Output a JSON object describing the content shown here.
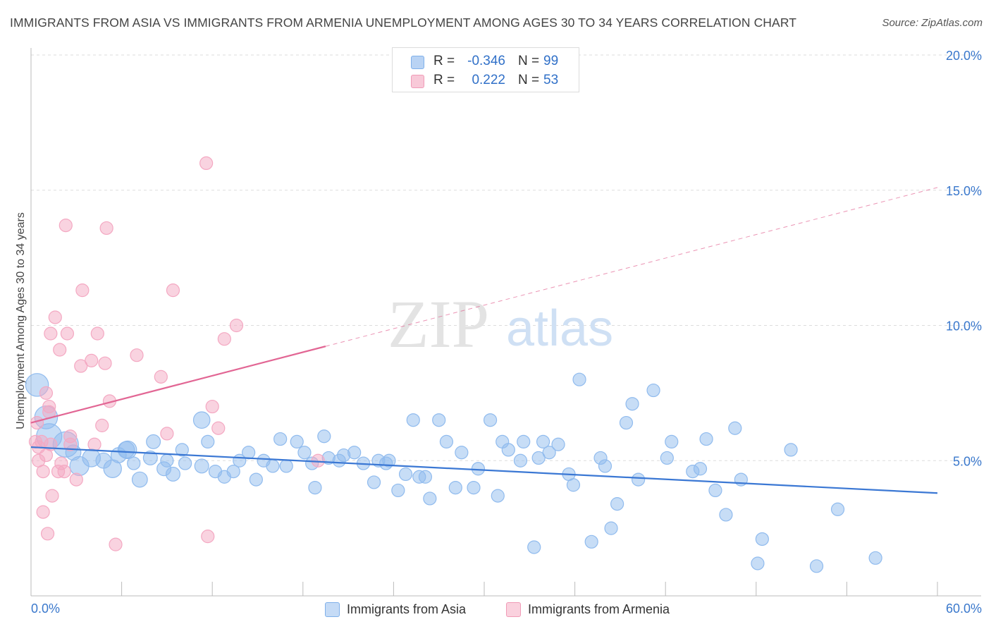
{
  "title": "IMMIGRANTS FROM ASIA VS IMMIGRANTS FROM ARMENIA UNEMPLOYMENT AMONG AGES 30 TO 34 YEARS CORRELATION CHART",
  "source": "Source: ZipAtlas.com",
  "watermark": {
    "zip": "ZIP",
    "atlas": "atlas"
  },
  "stats": [
    {
      "r_label": "R =",
      "r_value": "-0.346",
      "n_label": "N =",
      "n_value": "99",
      "color": "#7fb0ea",
      "fill": "#b9d3f4"
    },
    {
      "r_label": "R =",
      "r_value": "0.222",
      "n_label": "N =",
      "n_value": "53",
      "color": "#f09bb7",
      "fill": "#f8c9d8"
    }
  ],
  "legend": [
    {
      "label": "Immigrants from Asia",
      "color": "#7fb0ea",
      "fill": "#c5dbf6"
    },
    {
      "label": "Immigrants from Armenia",
      "color": "#f09bb7",
      "fill": "#fad1de"
    }
  ],
  "chart_data": {
    "type": "scatter",
    "xlabel": "",
    "ylabel": "Unemployment Among Ages 30 to 34 years",
    "xlim": [
      0,
      60
    ],
    "ylim": [
      0,
      20
    ],
    "x_tick_labels": [
      "0.0%",
      "60.0%"
    ],
    "y_tick_labels": [
      "5.0%",
      "10.0%",
      "15.0%",
      "20.0%"
    ],
    "y_ticks": [
      5,
      10,
      15,
      20
    ],
    "grid": true,
    "series": [
      {
        "name": "Immigrants from Asia",
        "color": "#3b78d4",
        "point_color": "#90bbee",
        "trend": {
          "x": [
            0,
            60
          ],
          "y": [
            5.5,
            3.8
          ],
          "dashed_from": null
        },
        "points": [
          [
            0.4,
            7.8,
            1.8
          ],
          [
            1.0,
            6.6,
            1.8
          ],
          [
            1.2,
            5.9,
            2.0
          ],
          [
            2.3,
            5.6,
            2.0
          ],
          [
            2.8,
            5.3,
            1.2
          ],
          [
            3.2,
            4.8,
            1.5
          ],
          [
            4.0,
            5.1,
            1.4
          ],
          [
            4.8,
            5.0,
            1.2
          ],
          [
            5.4,
            4.7,
            1.4
          ],
          [
            5.8,
            5.2,
            1.2
          ],
          [
            6.3,
            5.4,
            1.3
          ],
          [
            6.4,
            5.4,
            1.4
          ],
          [
            7.2,
            4.3,
            1.2
          ],
          [
            6.8,
            4.9,
            1.0
          ],
          [
            7.9,
            5.1,
            1.1
          ],
          [
            8.1,
            5.7,
            1.1
          ],
          [
            8.8,
            4.7,
            1.1
          ],
          [
            9.0,
            5.0,
            1.0
          ],
          [
            9.4,
            4.5,
            1.1
          ],
          [
            10.0,
            5.4,
            1.0
          ],
          [
            10.2,
            4.9,
            1.0
          ],
          [
            11.3,
            6.5,
            1.3
          ],
          [
            11.3,
            4.8,
            1.1
          ],
          [
            11.7,
            5.7,
            1.0
          ],
          [
            12.2,
            4.6,
            1.0
          ],
          [
            12.8,
            4.4,
            1.0
          ],
          [
            13.4,
            4.6,
            1.0
          ],
          [
            13.8,
            5.0,
            1.0
          ],
          [
            14.4,
            5.3,
            1.0
          ],
          [
            14.9,
            4.3,
            1.0
          ],
          [
            15.4,
            5.0,
            1.0
          ],
          [
            16.0,
            4.8,
            1.0
          ],
          [
            16.5,
            5.8,
            1.0
          ],
          [
            16.9,
            4.8,
            1.0
          ],
          [
            17.6,
            5.7,
            1.0
          ],
          [
            18.1,
            5.3,
            1.0
          ],
          [
            18.6,
            4.9,
            1.0
          ],
          [
            18.8,
            4.0,
            1.0
          ],
          [
            19.4,
            5.9,
            1.0
          ],
          [
            19.7,
            5.1,
            1.0
          ],
          [
            20.4,
            5.0,
            1.0
          ],
          [
            20.7,
            5.2,
            1.0
          ],
          [
            21.4,
            5.3,
            1.0
          ],
          [
            22.0,
            4.9,
            1.0
          ],
          [
            22.7,
            4.2,
            1.0
          ],
          [
            23.0,
            5.0,
            1.0
          ],
          [
            23.5,
            4.9,
            1.0
          ],
          [
            23.7,
            5.0,
            1.0
          ],
          [
            24.3,
            3.9,
            1.0
          ],
          [
            24.8,
            4.5,
            1.0
          ],
          [
            25.3,
            6.5,
            1.0
          ],
          [
            25.7,
            4.4,
            1.0
          ],
          [
            26.1,
            4.4,
            1.0
          ],
          [
            26.4,
            3.6,
            1.0
          ],
          [
            27.0,
            6.5,
            1.0
          ],
          [
            27.5,
            5.7,
            1.0
          ],
          [
            28.1,
            4.0,
            1.0
          ],
          [
            28.5,
            5.3,
            1.0
          ],
          [
            29.3,
            4.0,
            1.0
          ],
          [
            29.6,
            4.7,
            1.0
          ],
          [
            30.4,
            6.5,
            1.0
          ],
          [
            30.9,
            3.7,
            1.0
          ],
          [
            31.2,
            5.7,
            1.0
          ],
          [
            31.6,
            5.4,
            1.0
          ],
          [
            32.4,
            5.0,
            1.0
          ],
          [
            32.6,
            5.7,
            1.0
          ],
          [
            33.6,
            5.1,
            1.0
          ],
          [
            33.9,
            5.7,
            1.0
          ],
          [
            34.3,
            5.3,
            1.0
          ],
          [
            34.9,
            5.6,
            1.0
          ],
          [
            35.6,
            4.5,
            1.0
          ],
          [
            35.9,
            4.1,
            1.0
          ],
          [
            36.3,
            8.0,
            1.0
          ],
          [
            37.7,
            5.1,
            1.0
          ],
          [
            38.0,
            4.8,
            1.0
          ],
          [
            38.8,
            3.4,
            1.0
          ],
          [
            39.4,
            6.4,
            1.0
          ],
          [
            39.8,
            7.1,
            1.0
          ],
          [
            40.2,
            4.3,
            1.0
          ],
          [
            41.2,
            7.6,
            1.0
          ],
          [
            42.1,
            5.1,
            1.0
          ],
          [
            42.4,
            5.7,
            1.0
          ],
          [
            43.8,
            4.6,
            1.0
          ],
          [
            44.3,
            4.7,
            1.0
          ],
          [
            44.7,
            5.8,
            1.0
          ],
          [
            45.3,
            3.9,
            1.0
          ],
          [
            46.0,
            3.0,
            1.0
          ],
          [
            46.6,
            6.2,
            1.0
          ],
          [
            47.0,
            4.3,
            1.0
          ],
          [
            48.1,
            1.2,
            1.0
          ],
          [
            48.4,
            2.1,
            1.0
          ],
          [
            50.3,
            5.4,
            1.0
          ],
          [
            52.0,
            1.1,
            1.0
          ],
          [
            53.4,
            3.2,
            1.0
          ],
          [
            55.9,
            1.4,
            1.0
          ],
          [
            33.3,
            1.8,
            1.0
          ],
          [
            37.1,
            2.0,
            1.0
          ],
          [
            38.4,
            2.5,
            1.0
          ]
        ]
      },
      {
        "name": "Immigrants from Armenia",
        "color": "#e26694",
        "point_color": "#f4a8c2",
        "trend": {
          "x": [
            0,
            60
          ],
          "y": [
            6.4,
            15.1
          ],
          "dashed_from": 19.5
        },
        "points": [
          [
            0.3,
            5.7,
            1.0
          ],
          [
            0.4,
            6.4,
            1.0
          ],
          [
            0.5,
            5.5,
            1.0
          ],
          [
            0.5,
            5.0,
            1.0
          ],
          [
            0.7,
            5.7,
            1.0
          ],
          [
            0.8,
            4.6,
            1.0
          ],
          [
            0.8,
            3.1,
            1.0
          ],
          [
            1.0,
            7.5,
            1.0
          ],
          [
            1.0,
            5.2,
            1.0
          ],
          [
            1.1,
            2.3,
            1.0
          ],
          [
            1.2,
            7.0,
            1.0
          ],
          [
            1.2,
            6.8,
            1.0
          ],
          [
            1.3,
            9.7,
            1.0
          ],
          [
            1.3,
            5.6,
            1.0
          ],
          [
            1.4,
            3.7,
            1.0
          ],
          [
            1.6,
            10.3,
            1.0
          ],
          [
            1.8,
            4.6,
            1.0
          ],
          [
            1.9,
            9.1,
            1.0
          ],
          [
            2.0,
            4.9,
            1.0
          ],
          [
            2.2,
            4.6,
            1.0
          ],
          [
            2.3,
            13.7,
            1.0
          ],
          [
            2.4,
            9.7,
            1.0
          ],
          [
            2.6,
            5.6,
            1.0
          ],
          [
            2.6,
            5.9,
            1.0
          ],
          [
            3.0,
            4.3,
            1.0
          ],
          [
            3.3,
            8.5,
            1.0
          ],
          [
            3.4,
            11.3,
            1.0
          ],
          [
            4.0,
            8.7,
            1.0
          ],
          [
            4.2,
            5.6,
            1.0
          ],
          [
            4.4,
            9.7,
            1.0
          ],
          [
            4.7,
            6.3,
            1.0
          ],
          [
            4.9,
            8.6,
            1.0
          ],
          [
            5.0,
            13.6,
            1.0
          ],
          [
            5.2,
            7.2,
            1.0
          ],
          [
            5.6,
            1.9,
            1.0
          ],
          [
            7.0,
            8.9,
            1.0
          ],
          [
            8.6,
            8.1,
            1.0
          ],
          [
            9.0,
            6.0,
            1.0
          ],
          [
            9.4,
            11.3,
            1.0
          ],
          [
            11.7,
            2.2,
            1.0
          ],
          [
            12.0,
            7.0,
            1.0
          ],
          [
            12.4,
            6.2,
            1.0
          ],
          [
            12.8,
            9.5,
            1.0
          ],
          [
            13.6,
            10.0,
            1.0
          ],
          [
            11.6,
            16.0,
            1.0
          ],
          [
            19.0,
            5.0,
            1.0
          ]
        ]
      }
    ]
  }
}
